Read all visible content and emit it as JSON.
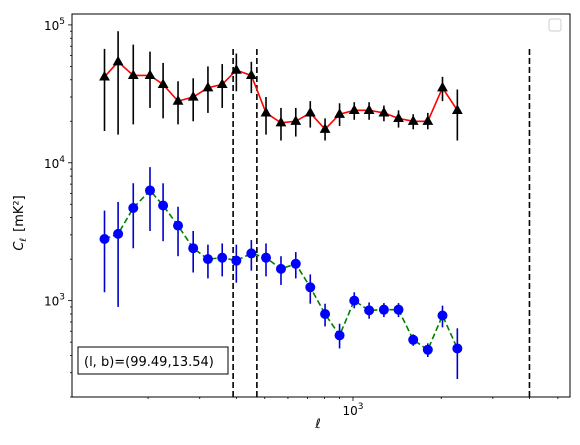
{
  "chart_data": {
    "type": "line",
    "title": "",
    "xlabel": "ℓ",
    "ylabel_main": "C",
    "ylabel_sub": "ℓ",
    "ylabel_unit": "[mK²]",
    "xscale": "log",
    "yscale": "log",
    "xlim": [
      110,
      5500
    ],
    "ylim": [
      200,
      120000
    ],
    "x_tick_labels": [
      {
        "value": 1000,
        "base": "10",
        "exp": "3"
      }
    ],
    "y_tick_labels": [
      {
        "value": 1000,
        "base": "10",
        "exp": "3"
      },
      {
        "value": 10000,
        "base": "10",
        "exp": "4"
      },
      {
        "value": 100000,
        "base": "10",
        "exp": "5"
      }
    ],
    "vlines": [
      390,
      470,
      4000
    ],
    "legend": "top-right",
    "annotation": "(l, b)=(99.49,13.54)",
    "series": [
      {
        "color": "#ff0000",
        "linestyle": "solid",
        "marker": "triangle",
        "marker_color": "#000000",
        "errorbar_color": "#000000",
        "points": [
          {
            "x": 142,
            "y": 42000,
            "lo": 17000,
            "hi": 67000
          },
          {
            "x": 158,
            "y": 54000,
            "lo": 16000,
            "hi": 90000
          },
          {
            "x": 178,
            "y": 43000,
            "lo": 19000,
            "hi": 72000
          },
          {
            "x": 203,
            "y": 43000,
            "lo": 25000,
            "hi": 64000
          },
          {
            "x": 225,
            "y": 37000,
            "lo": 21000,
            "hi": 53000
          },
          {
            "x": 253,
            "y": 28000,
            "lo": 19000,
            "hi": 39000
          },
          {
            "x": 285,
            "y": 30000,
            "lo": 20000,
            "hi": 41000
          },
          {
            "x": 320,
            "y": 35000,
            "lo": 23000,
            "hi": 50000
          },
          {
            "x": 358,
            "y": 37000,
            "lo": 25000,
            "hi": 52000
          },
          {
            "x": 400,
            "y": 47000,
            "lo": 33000,
            "hi": 62000
          },
          {
            "x": 450,
            "y": 43000,
            "lo": 32000,
            "hi": 54000
          },
          {
            "x": 505,
            "y": 23000,
            "lo": 16000,
            "hi": 30000
          },
          {
            "x": 568,
            "y": 19500,
            "lo": 14500,
            "hi": 25000
          },
          {
            "x": 638,
            "y": 20000,
            "lo": 15500,
            "hi": 25000
          },
          {
            "x": 715,
            "y": 23000,
            "lo": 18000,
            "hi": 28000
          },
          {
            "x": 803,
            "y": 17500,
            "lo": 14500,
            "hi": 21000
          },
          {
            "x": 900,
            "y": 22500,
            "lo": 18500,
            "hi": 27000
          },
          {
            "x": 1010,
            "y": 24000,
            "lo": 20500,
            "hi": 27500
          },
          {
            "x": 1135,
            "y": 24000,
            "lo": 20500,
            "hi": 27500
          },
          {
            "x": 1275,
            "y": 23000,
            "lo": 20000,
            "hi": 26000
          },
          {
            "x": 1430,
            "y": 21000,
            "lo": 18000,
            "hi": 24000
          },
          {
            "x": 1605,
            "y": 20000,
            "lo": 17500,
            "hi": 22500
          },
          {
            "x": 1800,
            "y": 20000,
            "lo": 17500,
            "hi": 23000
          },
          {
            "x": 2020,
            "y": 35000,
            "lo": 28000,
            "hi": 42000
          },
          {
            "x": 2270,
            "y": 24000,
            "lo": 14500,
            "hi": 34000
          }
        ]
      },
      {
        "color": "#008000",
        "linestyle": "dashed",
        "marker": "circle",
        "marker_color": "#0000ff",
        "errorbar_color": "#0000cc",
        "points": [
          {
            "x": 142,
            "y": 2800,
            "lo": 1150,
            "hi": 4500
          },
          {
            "x": 158,
            "y": 3050,
            "lo": 900,
            "hi": 5200
          },
          {
            "x": 178,
            "y": 4700,
            "lo": 2400,
            "hi": 7100
          },
          {
            "x": 203,
            "y": 6300,
            "lo": 3200,
            "hi": 9300
          },
          {
            "x": 225,
            "y": 4900,
            "lo": 2700,
            "hi": 7100
          },
          {
            "x": 253,
            "y": 3500,
            "lo": 2100,
            "hi": 4800
          },
          {
            "x": 285,
            "y": 2400,
            "lo": 1600,
            "hi": 3200
          },
          {
            "x": 320,
            "y": 2000,
            "lo": 1450,
            "hi": 2550
          },
          {
            "x": 358,
            "y": 2050,
            "lo": 1500,
            "hi": 2600
          },
          {
            "x": 400,
            "y": 1950,
            "lo": 1350,
            "hi": 2550
          },
          {
            "x": 450,
            "y": 2200,
            "lo": 1650,
            "hi": 2750
          },
          {
            "x": 505,
            "y": 2050,
            "lo": 1500,
            "hi": 2600
          },
          {
            "x": 568,
            "y": 1700,
            "lo": 1300,
            "hi": 2100
          },
          {
            "x": 638,
            "y": 1850,
            "lo": 1450,
            "hi": 2250
          },
          {
            "x": 715,
            "y": 1250,
            "lo": 950,
            "hi": 1550
          },
          {
            "x": 803,
            "y": 800,
            "lo": 650,
            "hi": 950
          },
          {
            "x": 900,
            "y": 560,
            "lo": 450,
            "hi": 680
          },
          {
            "x": 1010,
            "y": 1000,
            "lo": 880,
            "hi": 1150
          },
          {
            "x": 1135,
            "y": 850,
            "lo": 740,
            "hi": 970
          },
          {
            "x": 1275,
            "y": 860,
            "lo": 760,
            "hi": 960
          },
          {
            "x": 1430,
            "y": 860,
            "lo": 760,
            "hi": 960
          },
          {
            "x": 1605,
            "y": 520,
            "lo": 470,
            "hi": 570
          },
          {
            "x": 1800,
            "y": 440,
            "lo": 390,
            "hi": 490
          },
          {
            "x": 2020,
            "y": 780,
            "lo": 640,
            "hi": 920
          },
          {
            "x": 2270,
            "y": 450,
            "lo": 270,
            "hi": 630
          }
        ]
      }
    ]
  }
}
